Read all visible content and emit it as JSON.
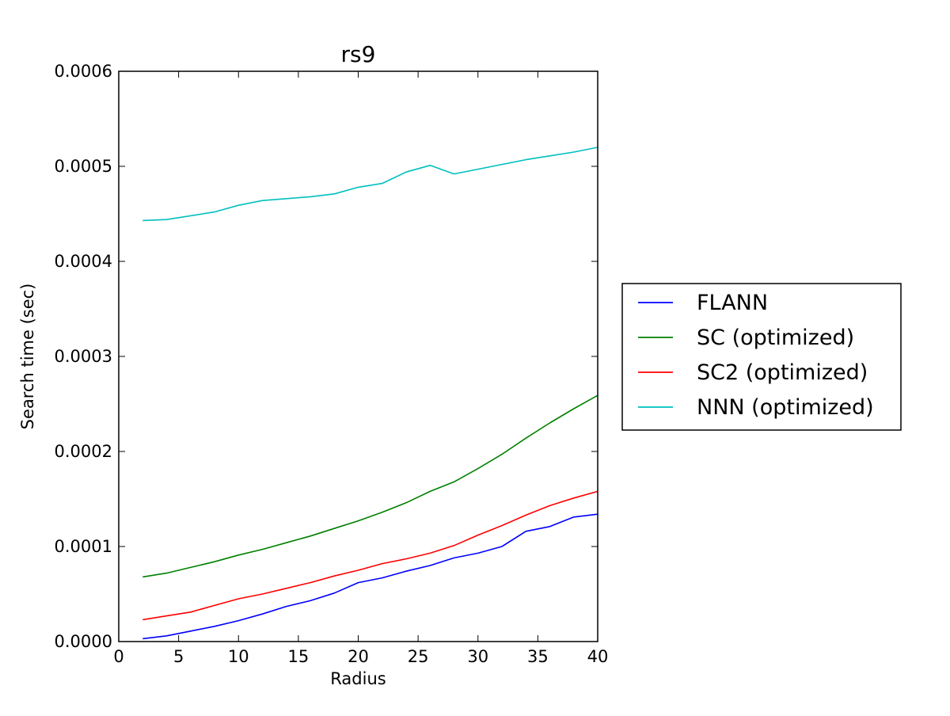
{
  "chart_data": {
    "type": "line",
    "title": "rs9",
    "xlabel": "Radius",
    "ylabel": "Search time (sec)",
    "xlim": [
      0,
      40
    ],
    "ylim": [
      0,
      0.0006
    ],
    "xticks": [
      0,
      5,
      10,
      15,
      20,
      25,
      30,
      35,
      40
    ],
    "xtick_labels": [
      "0",
      "5",
      "10",
      "15",
      "20",
      "25",
      "30",
      "35",
      "40"
    ],
    "yticks": [
      0,
      0.0001,
      0.0002,
      0.0003,
      0.0004,
      0.0005,
      0.0006
    ],
    "ytick_labels": [
      "0.0000",
      "0.0001",
      "0.0002",
      "0.0003",
      "0.0004",
      "0.0005",
      "0.0006"
    ],
    "grid": false,
    "legend_position": "outside-right",
    "x": [
      2,
      4,
      6,
      8,
      10,
      12,
      14,
      16,
      18,
      20,
      22,
      24,
      26,
      28,
      30,
      32,
      34,
      36,
      38,
      40
    ],
    "series": [
      {
        "name": "FLANN",
        "color": "#0000ff",
        "values": [
          3e-06,
          6e-06,
          1.1e-05,
          1.6e-05,
          2.2e-05,
          2.9e-05,
          3.7e-05,
          4.3e-05,
          5.1e-05,
          6.2e-05,
          6.7e-05,
          7.4e-05,
          8e-05,
          8.8e-05,
          9.3e-05,
          0.0001,
          0.000116,
          0.000121,
          0.000131,
          0.000134
        ]
      },
      {
        "name": "SC (optimized)",
        "color": "#008000",
        "values": [
          6.8e-05,
          7.2e-05,
          7.8e-05,
          8.4e-05,
          9.1e-05,
          9.7e-05,
          0.000104,
          0.000111,
          0.000119,
          0.000127,
          0.000136,
          0.000146,
          0.000158,
          0.000168,
          0.000182,
          0.000197,
          0.000214,
          0.00023,
          0.000245,
          0.000259
        ]
      },
      {
        "name": "SC2 (optimized)",
        "color": "#ff0000",
        "values": [
          2.3e-05,
          2.7e-05,
          3.1e-05,
          3.8e-05,
          4.5e-05,
          5e-05,
          5.6e-05,
          6.2e-05,
          6.9e-05,
          7.5e-05,
          8.2e-05,
          8.7e-05,
          9.3e-05,
          0.000101,
          0.000112,
          0.000122,
          0.000133,
          0.000143,
          0.000151,
          0.000158
        ]
      },
      {
        "name": "NNN (optimized)",
        "color": "#00bfbf",
        "values": [
          0.000443,
          0.000444,
          0.000448,
          0.000452,
          0.000459,
          0.000464,
          0.000466,
          0.000468,
          0.000471,
          0.000478,
          0.000482,
          0.000494,
          0.000501,
          0.000492,
          0.000497,
          0.000502,
          0.000507,
          0.000511,
          0.000515,
          0.00052
        ]
      }
    ]
  }
}
